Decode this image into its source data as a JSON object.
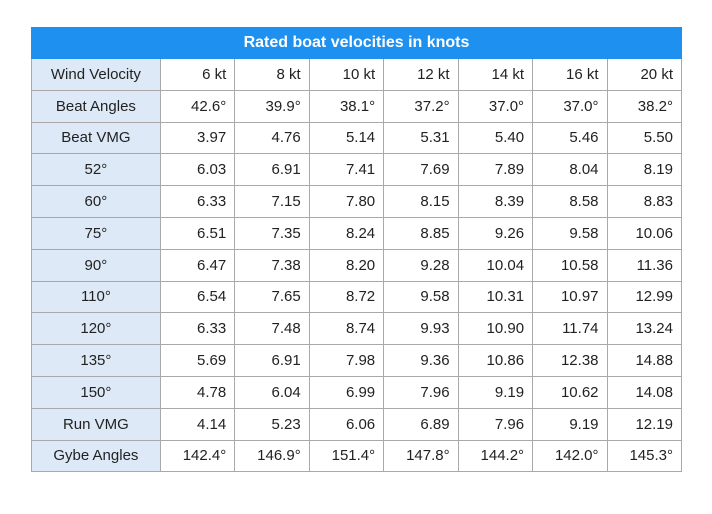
{
  "table": {
    "title": "Rated boat velocities in knots",
    "header": [
      "Wind Velocity",
      "6 kt",
      "8 kt",
      "10 kt",
      "12 kt",
      "14 kt",
      "16 kt",
      "20 kt"
    ],
    "rows": [
      [
        "Beat Angles",
        "42.6°",
        "39.9°",
        "38.1°",
        "37.2°",
        "37.0°",
        "37.0°",
        "38.2°"
      ],
      [
        "Beat VMG",
        "3.97",
        "4.76",
        "5.14",
        "5.31",
        "5.40",
        "5.46",
        "5.50"
      ],
      [
        "52°",
        "6.03",
        "6.91",
        "7.41",
        "7.69",
        "7.89",
        "8.04",
        "8.19"
      ],
      [
        "60°",
        "6.33",
        "7.15",
        "7.80",
        "8.15",
        "8.39",
        "8.58",
        "8.83"
      ],
      [
        "75°",
        "6.51",
        "7.35",
        "8.24",
        "8.85",
        "9.26",
        "9.58",
        "10.06"
      ],
      [
        "90°",
        "6.47",
        "7.38",
        "8.20",
        "9.28",
        "10.04",
        "10.58",
        "11.36"
      ],
      [
        "110°",
        "6.54",
        "7.65",
        "8.72",
        "9.58",
        "10.31",
        "10.97",
        "12.99"
      ],
      [
        "120°",
        "6.33",
        "7.48",
        "8.74",
        "9.93",
        "10.90",
        "11.74",
        "13.24"
      ],
      [
        "135°",
        "5.69",
        "6.91",
        "7.98",
        "9.36",
        "10.86",
        "12.38",
        "14.88"
      ],
      [
        "150°",
        "4.78",
        "6.04",
        "6.99",
        "7.96",
        "9.19",
        "10.62",
        "14.08"
      ],
      [
        "Run VMG",
        "4.14",
        "5.23",
        "6.06",
        "6.89",
        "7.96",
        "9.19",
        "12.19"
      ],
      [
        "Gybe Angles",
        "142.4°",
        "146.9°",
        "151.4°",
        "147.8°",
        "144.2°",
        "142.0°",
        "145.3°"
      ]
    ]
  }
}
